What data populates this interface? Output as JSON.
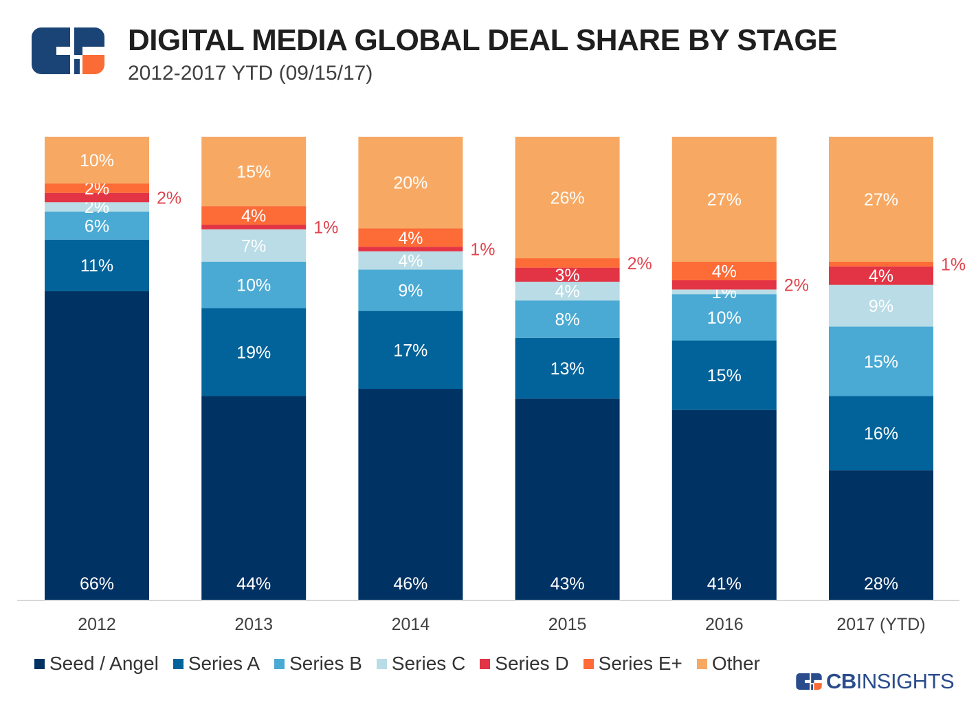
{
  "header": {
    "title": "DIGITAL MEDIA GLOBAL DEAL SHARE BY STAGE",
    "subtitle": "2012-2017 YTD (09/15/17)"
  },
  "brand": {
    "bold": "CB",
    "light": "INSIGHTS"
  },
  "colors": {
    "Seed / Angel": "#003263",
    "Series A": "#02639a",
    "Series B": "#4aaad4",
    "Series C": "#b9dce6",
    "Series D": "#e23444",
    "Series E+": "#fd6b37",
    "Other": "#f7a964",
    "logo_navy": "#1b4476",
    "logo_orange": "#fb6b35",
    "outside_label": "#e0444f"
  },
  "chart_data": {
    "type": "bar",
    "stacked": true,
    "categories": [
      "2012",
      "2013",
      "2014",
      "2015",
      "2016",
      "2017 (YTD)"
    ],
    "ylim": [
      0,
      100
    ],
    "grid": false,
    "legend_position": "bottom-left",
    "series": [
      {
        "name": "Seed / Angel",
        "values": [
          66,
          44,
          46,
          43,
          41,
          28
        ],
        "labels": [
          "66%",
          "44%",
          "46%",
          "43%",
          "41%",
          "28%"
        ]
      },
      {
        "name": "Series A",
        "values": [
          11,
          19,
          17,
          13,
          15,
          16
        ],
        "labels": [
          "11%",
          "19%",
          "17%",
          "13%",
          "15%",
          "16%"
        ]
      },
      {
        "name": "Series B",
        "values": [
          6,
          10,
          9,
          8,
          10,
          15
        ],
        "labels": [
          "6%",
          "10%",
          "9%",
          "8%",
          "10%",
          "15%"
        ]
      },
      {
        "name": "Series C",
        "values": [
          2,
          7,
          4,
          4,
          1,
          9
        ],
        "labels": [
          "2%",
          "7%",
          "4%",
          "4%",
          "1%",
          "9%"
        ]
      },
      {
        "name": "Series D",
        "values": [
          2,
          1,
          1,
          3,
          2,
          4
        ],
        "labels": [
          "2%",
          "1%",
          "1%",
          "3%",
          "2%",
          "4%"
        ]
      },
      {
        "name": "Series E+",
        "values": [
          2,
          4,
          4,
          2,
          4,
          1
        ],
        "labels": [
          "2%",
          "4%",
          "4%",
          "2%",
          "4%",
          "1%"
        ]
      },
      {
        "name": "Other",
        "values": [
          10,
          15,
          20,
          26,
          27,
          27
        ],
        "labels": [
          "10%",
          "15%",
          "20%",
          "26%",
          "27%",
          "27%"
        ]
      }
    ],
    "outside_labels": [
      {
        "category": "2012",
        "series": "Series D",
        "label": "2%"
      },
      {
        "category": "2013",
        "series": "Series D",
        "label": "1%"
      },
      {
        "category": "2014",
        "series": "Series D",
        "label": "1%"
      },
      {
        "category": "2015",
        "series": "Series E+",
        "label": "2%"
      },
      {
        "category": "2016",
        "series": "Series D",
        "label": "2%"
      },
      {
        "category": "2017 (YTD)",
        "series": "Series E+",
        "label": "1%"
      }
    ]
  },
  "legend": [
    {
      "label": "Seed / Angel",
      "color": "#003263"
    },
    {
      "label": "Series A",
      "color": "#02639a"
    },
    {
      "label": "Series B",
      "color": "#4aaad4"
    },
    {
      "label": "Series C",
      "color": "#b9dce6"
    },
    {
      "label": "Series D",
      "color": "#e23444"
    },
    {
      "label": "Series E+",
      "color": "#fd6b37"
    },
    {
      "label": "Other",
      "color": "#f7a964"
    }
  ]
}
